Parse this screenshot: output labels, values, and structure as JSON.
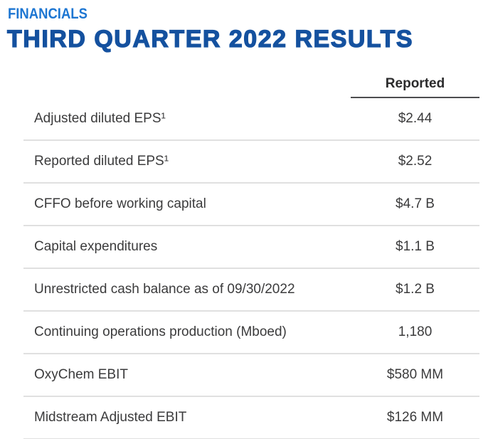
{
  "page": {
    "section_label": "FINANCIALS",
    "title": "THIRD QUARTER 2022 RESULTS"
  },
  "colors": {
    "section_label": "#1d76d2",
    "title": "#14519f",
    "text": "#3b3b3c",
    "header_text": "#2b2b2c",
    "row_divider": "#e0e0e0",
    "header_underline": "#4d4d4f"
  },
  "table": {
    "value_column_header": "Reported",
    "rows": [
      {
        "label": "Adjusted diluted EPS¹",
        "value": "$2.44"
      },
      {
        "label": "Reported diluted EPS¹",
        "value": "$2.52"
      },
      {
        "label": "CFFO before working capital",
        "value": "$4.7 B"
      },
      {
        "label": "Capital expenditures",
        "value": "$1.1 B"
      },
      {
        "label": "Unrestricted cash balance as of 09/30/2022",
        "value": "$1.2 B"
      },
      {
        "label": "Continuing operations production (Mboed)",
        "value": "1,180"
      },
      {
        "label": "OxyChem EBIT",
        "value": "$580 MM"
      },
      {
        "label": "Midstream Adjusted EBIT",
        "value": "$126 MM"
      }
    ]
  }
}
